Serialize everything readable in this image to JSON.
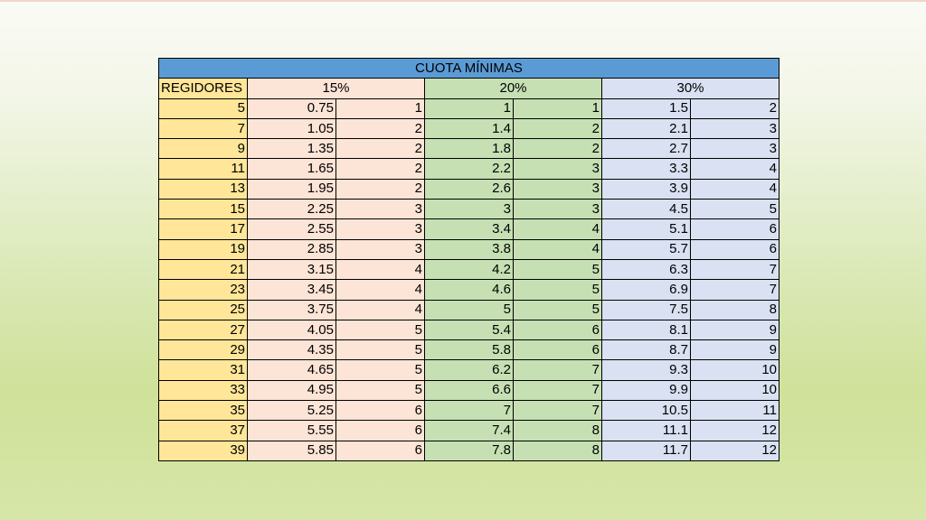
{
  "table": {
    "title": "CUOTA MÍNIMAS",
    "row_header": "REGIDORES",
    "group_headers": [
      "15%",
      "20%",
      "30%"
    ],
    "rows": [
      [
        "5",
        "0.75",
        "1",
        "1",
        "1",
        "1.5",
        "2"
      ],
      [
        "7",
        "1.05",
        "2",
        "1.4",
        "2",
        "2.1",
        "3"
      ],
      [
        "9",
        "1.35",
        "2",
        "1.8",
        "2",
        "2.7",
        "3"
      ],
      [
        "11",
        "1.65",
        "2",
        "2.2",
        "3",
        "3.3",
        "4"
      ],
      [
        "13",
        "1.95",
        "2",
        "2.6",
        "3",
        "3.9",
        "4"
      ],
      [
        "15",
        "2.25",
        "3",
        "3",
        "3",
        "4.5",
        "5"
      ],
      [
        "17",
        "2.55",
        "3",
        "3.4",
        "4",
        "5.1",
        "6"
      ],
      [
        "19",
        "2.85",
        "3",
        "3.8",
        "4",
        "5.7",
        "6"
      ],
      [
        "21",
        "3.15",
        "4",
        "4.2",
        "5",
        "6.3",
        "7"
      ],
      [
        "23",
        "3.45",
        "4",
        "4.6",
        "5",
        "6.9",
        "7"
      ],
      [
        "25",
        "3.75",
        "4",
        "5",
        "5",
        "7.5",
        "8"
      ],
      [
        "27",
        "4.05",
        "5",
        "5.4",
        "6",
        "8.1",
        "9"
      ],
      [
        "29",
        "4.35",
        "5",
        "5.8",
        "6",
        "8.7",
        "9"
      ],
      [
        "31",
        "4.65",
        "5",
        "6.2",
        "7",
        "9.3",
        "10"
      ],
      [
        "33",
        "4.95",
        "5",
        "6.6",
        "7",
        "9.9",
        "10"
      ],
      [
        "35",
        "5.25",
        "6",
        "7",
        "7",
        "10.5",
        "11"
      ],
      [
        "37",
        "5.55",
        "6",
        "7.4",
        "8",
        "11.1",
        "12"
      ],
      [
        "39",
        "5.85",
        "6",
        "7.8",
        "8",
        "11.7",
        "12"
      ]
    ]
  },
  "colors": {
    "title_bg": "#5b9bd5",
    "regidores_bg": "#ffe699",
    "pct15_bg": "#fce4d6",
    "pct20_bg": "#c6e0b4",
    "pct30_bg": "#d9e1f2"
  }
}
